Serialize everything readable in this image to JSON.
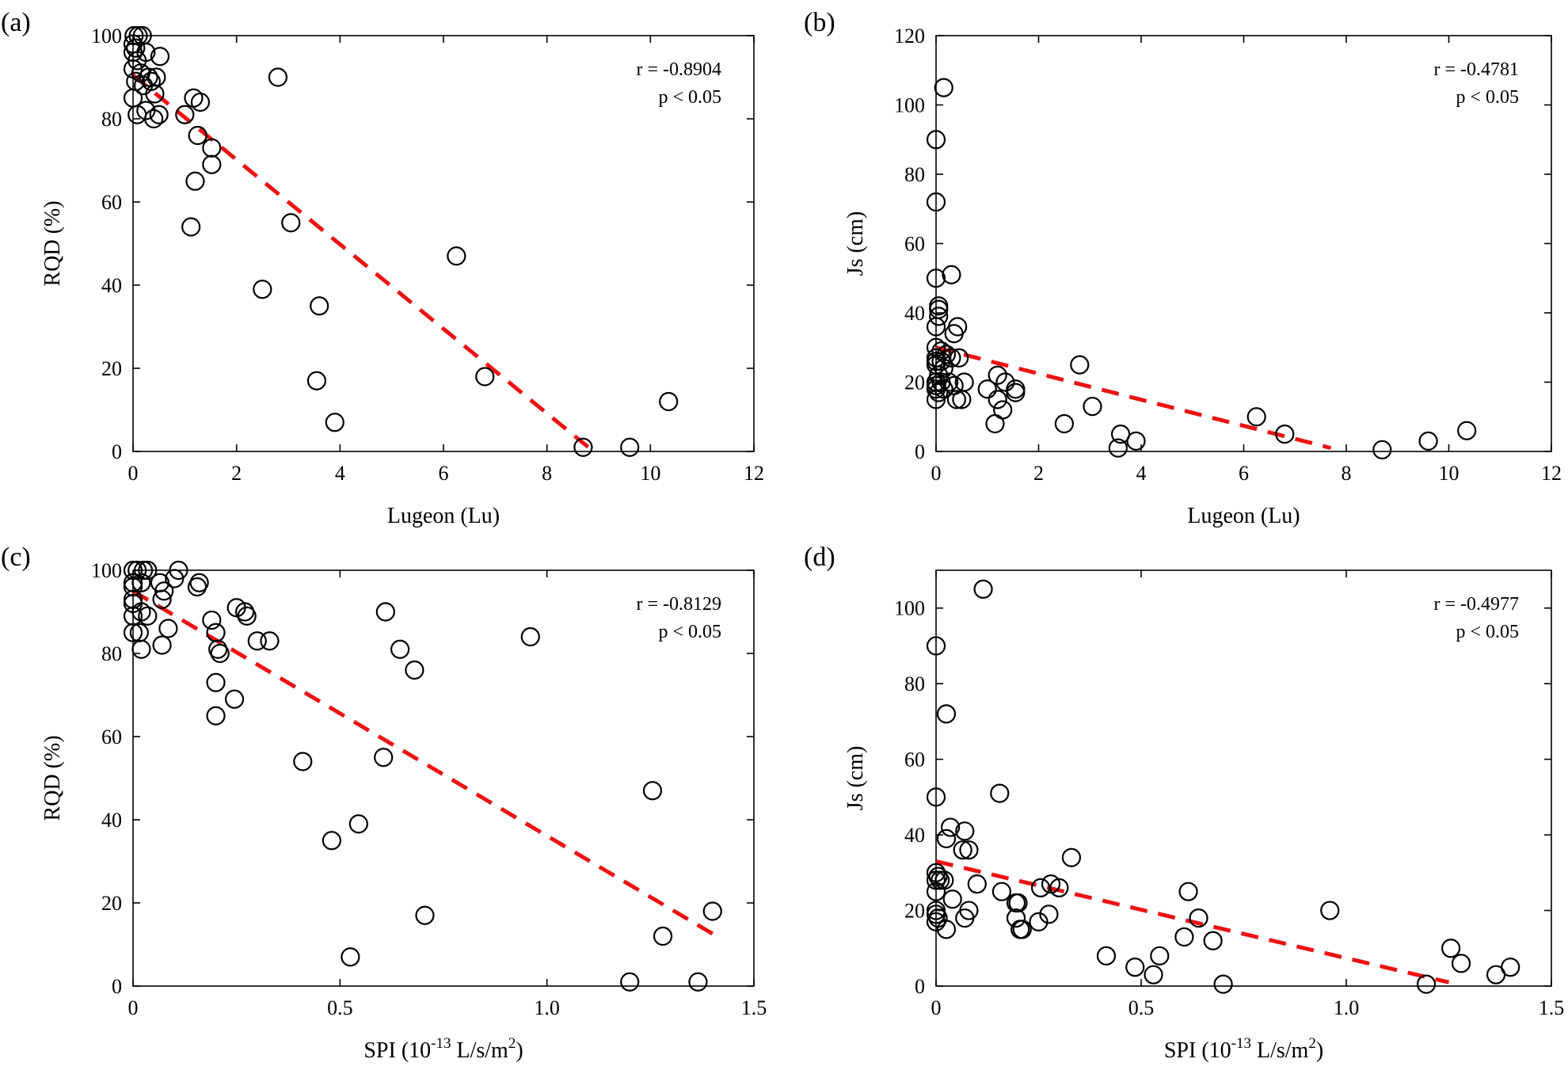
{
  "chart_data": [
    {
      "type": "scatter",
      "panel_label": "(a)",
      "xlabel": "Lugeon (Lu)",
      "ylabel": "RQD (%)",
      "xlim": [
        0,
        12
      ],
      "ylim": [
        0,
        100
      ],
      "xticks": [
        0,
        2,
        4,
        6,
        8,
        10,
        12
      ],
      "yticks": [
        0,
        20,
        40,
        60,
        80,
        100
      ],
      "annotation": [
        "r = -0.8904",
        "p < 0.05"
      ],
      "fit_line": {
        "x": [
          0,
          8.9
        ],
        "y": [
          90.5,
          0
        ]
      },
      "points": [
        [
          0.02,
          100
        ],
        [
          0.1,
          100
        ],
        [
          0.18,
          100
        ],
        [
          0.0,
          98
        ],
        [
          0.05,
          97
        ],
        [
          0.0,
          96
        ],
        [
          0.25,
          96
        ],
        [
          0.52,
          95
        ],
        [
          0.08,
          94
        ],
        [
          0.0,
          92
        ],
        [
          0.15,
          91
        ],
        [
          0.3,
          90
        ],
        [
          0.45,
          90
        ],
        [
          0.35,
          89
        ],
        [
          0.05,
          89
        ],
        [
          0.2,
          88
        ],
        [
          0.0,
          85
        ],
        [
          0.25,
          82
        ],
        [
          0.42,
          86
        ],
        [
          0.08,
          81
        ],
        [
          0.5,
          81
        ],
        [
          0.4,
          80
        ],
        [
          1.0,
          81
        ],
        [
          1.17,
          85
        ],
        [
          1.3,
          84
        ],
        [
          1.25,
          76
        ],
        [
          1.52,
          73
        ],
        [
          1.52,
          69
        ],
        [
          1.2,
          65
        ],
        [
          1.12,
          54
        ],
        [
          2.8,
          90
        ],
        [
          3.05,
          55
        ],
        [
          2.5,
          39
        ],
        [
          3.6,
          35
        ],
        [
          3.55,
          17
        ],
        [
          3.9,
          7
        ],
        [
          6.25,
          47
        ],
        [
          6.8,
          18
        ],
        [
          8.7,
          1
        ],
        [
          9.6,
          1
        ],
        [
          10.35,
          12
        ]
      ]
    },
    {
      "type": "scatter",
      "panel_label": "(b)",
      "xlabel": "Lugeon (Lu)",
      "ylabel": "Js (cm)",
      "xlim": [
        0,
        12
      ],
      "ylim": [
        0,
        120
      ],
      "xticks": [
        0,
        2,
        4,
        6,
        8,
        10,
        12
      ],
      "yticks": [
        0,
        20,
        40,
        60,
        80,
        100,
        120
      ],
      "annotation": [
        "r = -0.4781",
        "p < 0.05"
      ],
      "fit_line": {
        "x": [
          0,
          7.7
        ],
        "y": [
          30,
          1
        ]
      },
      "points": [
        [
          0.15,
          105
        ],
        [
          0.0,
          90
        ],
        [
          0.0,
          72
        ],
        [
          0.0,
          50
        ],
        [
          0.3,
          51
        ],
        [
          0.05,
          42
        ],
        [
          0.05,
          41
        ],
        [
          0.05,
          39
        ],
        [
          0.0,
          36
        ],
        [
          0.42,
          36
        ],
        [
          0.35,
          34
        ],
        [
          0.0,
          30
        ],
        [
          0.1,
          29
        ],
        [
          0.2,
          28
        ],
        [
          0.0,
          27
        ],
        [
          0.3,
          27
        ],
        [
          0.45,
          27
        ],
        [
          0.0,
          26
        ],
        [
          0.1,
          26
        ],
        [
          0.0,
          25
        ],
        [
          0.15,
          24
        ],
        [
          0.05,
          22
        ],
        [
          0.0,
          20
        ],
        [
          0.1,
          20
        ],
        [
          0.25,
          20
        ],
        [
          0.55,
          20
        ],
        [
          0.0,
          19
        ],
        [
          0.35,
          19
        ],
        [
          0.0,
          18
        ],
        [
          0.15,
          18
        ],
        [
          0.05,
          17
        ],
        [
          0.4,
          15
        ],
        [
          0.5,
          15
        ],
        [
          0.0,
          15
        ],
        [
          1.0,
          18
        ],
        [
          1.2,
          22
        ],
        [
          1.35,
          20
        ],
        [
          1.55,
          18
        ],
        [
          1.55,
          17
        ],
        [
          1.2,
          15
        ],
        [
          1.3,
          12
        ],
        [
          1.15,
          8
        ],
        [
          2.5,
          8
        ],
        [
          2.8,
          25
        ],
        [
          3.05,
          13
        ],
        [
          3.6,
          5
        ],
        [
          3.55,
          1
        ],
        [
          3.9,
          3
        ],
        [
          6.25,
          10
        ],
        [
          6.8,
          5
        ],
        [
          8.7,
          0.5
        ],
        [
          9.6,
          3
        ],
        [
          10.35,
          6
        ]
      ]
    },
    {
      "type": "scatter",
      "panel_label": "(c)",
      "xlabel": "SPI (10<sup>-13</sup> L/s/m<sup>2</sup>)",
      "xlabel_parts": [
        "SPI (10",
        "-13",
        " L/s/m",
        "2",
        ")"
      ],
      "ylabel": "RQD (%)",
      "xlim": [
        0,
        1.5
      ],
      "ylim": [
        0,
        100
      ],
      "xticks": [
        "0",
        "0.5",
        "1.0",
        "1.5"
      ],
      "xtick_values": [
        0,
        0.5,
        1.0,
        1.5
      ],
      "yticks": [
        0,
        20,
        40,
        60,
        80,
        100
      ],
      "annotation": [
        "r = -0.8129",
        "p < 0.05"
      ],
      "fit_line": {
        "x": [
          0,
          1.41
        ],
        "y": [
          95,
          12
        ]
      },
      "points": [
        [
          0.0,
          100
        ],
        [
          0.01,
          100
        ],
        [
          0.025,
          100
        ],
        [
          0.035,
          100
        ],
        [
          0.11,
          100
        ],
        [
          0.1,
          98
        ],
        [
          0.0,
          97
        ],
        [
          0.02,
          97
        ],
        [
          0.065,
          97
        ],
        [
          0.155,
          96
        ],
        [
          0.16,
          97
        ],
        [
          0.0,
          96
        ],
        [
          0.075,
          95
        ],
        [
          0.0,
          93
        ],
        [
          0.07,
          93
        ],
        [
          0.0,
          92
        ],
        [
          0.02,
          90
        ],
        [
          0.035,
          89
        ],
        [
          0.0,
          89
        ],
        [
          0.25,
          91
        ],
        [
          0.27,
          90
        ],
        [
          0.275,
          89
        ],
        [
          0.19,
          88
        ],
        [
          0.085,
          86
        ],
        [
          0.2,
          85
        ],
        [
          0.0,
          85
        ],
        [
          0.015,
          85
        ],
        [
          0.205,
          81
        ],
        [
          0.02,
          81
        ],
        [
          0.07,
          82
        ],
        [
          0.21,
          80
        ],
        [
          0.3,
          83
        ],
        [
          0.33,
          83
        ],
        [
          0.2,
          73
        ],
        [
          0.245,
          69
        ],
        [
          0.2,
          65
        ],
        [
          0.61,
          90
        ],
        [
          0.645,
          81
        ],
        [
          0.68,
          76
        ],
        [
          0.96,
          84
        ],
        [
          0.41,
          54
        ],
        [
          0.605,
          55
        ],
        [
          0.545,
          39
        ],
        [
          0.48,
          35
        ],
        [
          0.525,
          7
        ],
        [
          0.705,
          17
        ],
        [
          1.2,
          1
        ],
        [
          1.255,
          47
        ],
        [
          1.28,
          12
        ],
        [
          1.365,
          1
        ],
        [
          1.4,
          18
        ]
      ]
    },
    {
      "type": "scatter",
      "panel_label": "(d)",
      "xlabel": "SPI (10<sup>-13</sup> L/s/m<sup>2</sup>)",
      "xlabel_parts": [
        "SPI (10",
        "-13",
        " L/s/m",
        "2",
        ")"
      ],
      "ylabel": "Js (cm)",
      "xlim": [
        0,
        1.5
      ],
      "ylim": [
        0,
        110
      ],
      "xticks": [
        "0",
        "0.5",
        "1.0",
        "1.5"
      ],
      "xtick_values": [
        0,
        0.5,
        1.0,
        1.5
      ],
      "yticks": [
        0,
        20,
        40,
        60,
        80,
        100
      ],
      "annotation": [
        "r = -0.4977",
        "p < 0.05"
      ],
      "fit_line": {
        "x": [
          0,
          1.25
        ],
        "y": [
          33,
          1
        ]
      },
      "points": [
        [
          0.115,
          105
        ],
        [
          0.0,
          90
        ],
        [
          0.025,
          72
        ],
        [
          0.0,
          50
        ],
        [
          0.155,
          51
        ],
        [
          0.035,
          42
        ],
        [
          0.07,
          41
        ],
        [
          0.025,
          39
        ],
        [
          0.065,
          36
        ],
        [
          0.08,
          36
        ],
        [
          0.33,
          34
        ],
        [
          0.0,
          30
        ],
        [
          0.005,
          29
        ],
        [
          0.01,
          28
        ],
        [
          0.0,
          28
        ],
        [
          0.02,
          28
        ],
        [
          0.28,
          27
        ],
        [
          0.1,
          27
        ],
        [
          0.255,
          26
        ],
        [
          0.3,
          26
        ],
        [
          0.0,
          25
        ],
        [
          0.16,
          25
        ],
        [
          0.04,
          23
        ],
        [
          0.2,
          22
        ],
        [
          0.195,
          22
        ],
        [
          0.0,
          20
        ],
        [
          0.08,
          20
        ],
        [
          0.0,
          19
        ],
        [
          0.005,
          18
        ],
        [
          0.07,
          18
        ],
        [
          0.195,
          18
        ],
        [
          0.275,
          19
        ],
        [
          0.0,
          17
        ],
        [
          0.25,
          17
        ],
        [
          0.025,
          15
        ],
        [
          0.205,
          15
        ],
        [
          0.21,
          15
        ],
        [
          0.615,
          25
        ],
        [
          0.64,
          18
        ],
        [
          0.605,
          13
        ],
        [
          0.675,
          12
        ],
        [
          0.96,
          20
        ],
        [
          0.415,
          8
        ],
        [
          0.485,
          5
        ],
        [
          0.53,
          3
        ],
        [
          0.545,
          8
        ],
        [
          0.7,
          0.5
        ],
        [
          1.195,
          0.5
        ],
        [
          1.255,
          10
        ],
        [
          1.28,
          6
        ],
        [
          1.365,
          3
        ],
        [
          1.4,
          5
        ]
      ]
    }
  ]
}
